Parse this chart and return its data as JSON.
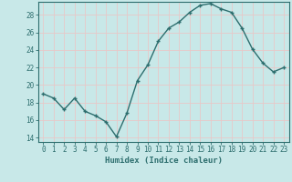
{
  "x": [
    0,
    1,
    2,
    3,
    4,
    5,
    6,
    7,
    8,
    9,
    10,
    11,
    12,
    13,
    14,
    15,
    16,
    17,
    18,
    19,
    20,
    21,
    22,
    23
  ],
  "y": [
    19,
    18.5,
    17.2,
    18.5,
    17,
    16.5,
    15.8,
    14.1,
    16.8,
    20.5,
    22.3,
    25,
    26.5,
    27.2,
    28.3,
    29.1,
    29.3,
    28.7,
    28.3,
    26.5,
    24.1,
    22.5,
    21.5,
    22
  ],
  "line_color": "#2d6e6e",
  "marker": "+",
  "bg_color": "#c8e8e8",
  "grid_color": "#e8c8c8",
  "xlabel": "Humidex (Indice chaleur)",
  "xlim": [
    -0.5,
    23.5
  ],
  "ylim": [
    13.5,
    29.5
  ],
  "yticks": [
    14,
    16,
    18,
    20,
    22,
    24,
    26,
    28
  ],
  "xticks": [
    0,
    1,
    2,
    3,
    4,
    5,
    6,
    7,
    8,
    9,
    10,
    11,
    12,
    13,
    14,
    15,
    16,
    17,
    18,
    19,
    20,
    21,
    22,
    23
  ],
  "xlabel_fontsize": 6.5,
  "tick_fontsize": 5.5,
  "line_width": 1.0,
  "marker_size": 3.5
}
